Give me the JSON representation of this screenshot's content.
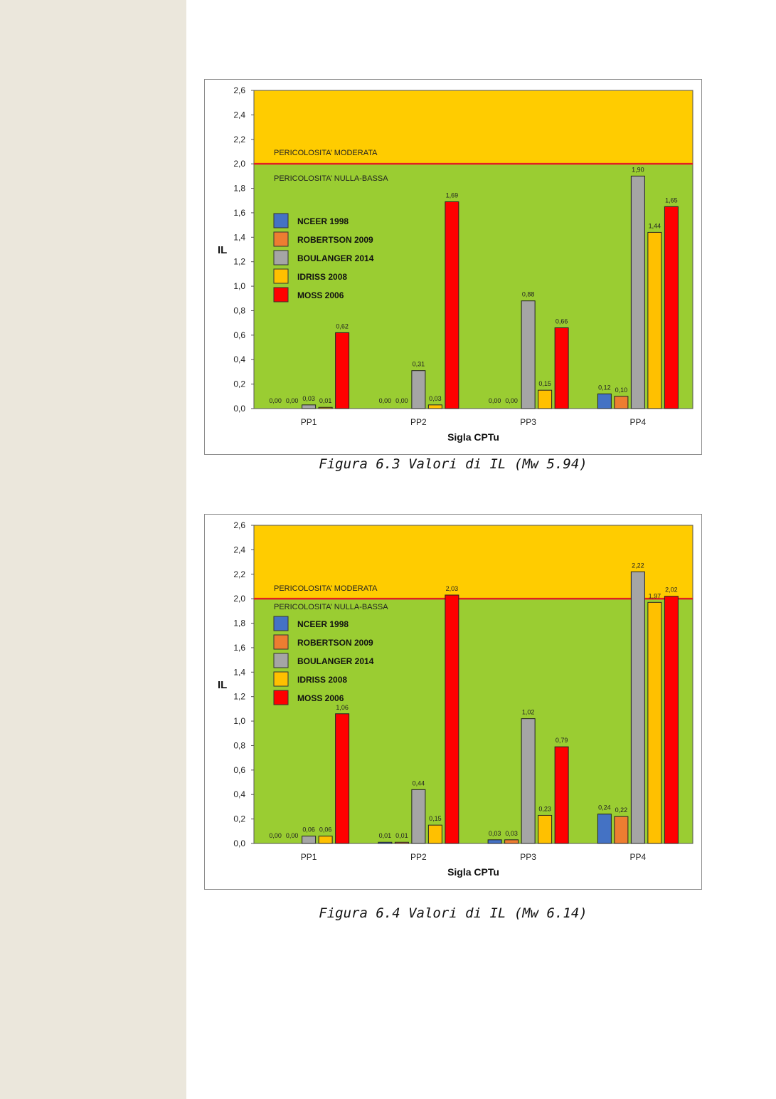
{
  "figures": [
    {
      "caption": "Figura 6.3 Valori di IL (Mw 5.94)",
      "chart_data": {
        "type": "bar",
        "xlabel": "Sigla CPTu",
        "ylabel": "IL",
        "ylim": [
          0,
          2.6
        ],
        "yticks": [
          "0,0",
          "0,2",
          "0,4",
          "0,6",
          "0,8",
          "1,0",
          "1,2",
          "1,4",
          "1,6",
          "1,8",
          "2,0",
          "2,2",
          "2,4",
          "2,6"
        ],
        "categories": [
          "PP1",
          "PP2",
          "PP3",
          "PP4"
        ],
        "threshold": 2.0,
        "zone_upper_label": "PERICOLOSITA’ MODERATA",
        "zone_lower_label": "PERICOLOSITA’ NULLA-BASSA",
        "legend_position": "left",
        "zone_colors": {
          "upper": "#ffcc00",
          "lower": "#9acd32",
          "threshold": "#e32020"
        },
        "series": [
          {
            "name": "NCEER 1998",
            "color": "#4472c4",
            "values": [
              0.0,
              0.0,
              0.0,
              0.12
            ],
            "labels": [
              "0,00",
              "0,00",
              "0,00",
              "0,12"
            ]
          },
          {
            "name": "ROBERTSON 2009",
            "color": "#ed7d31",
            "values": [
              0.0,
              0.0,
              0.0,
              0.1
            ],
            "labels": [
              "0,00",
              "0,00",
              "0,00",
              "0,10"
            ]
          },
          {
            "name": "BOULANGER 2014",
            "color": "#a5a5a5",
            "values": [
              0.03,
              0.31,
              0.88,
              1.9
            ],
            "labels": [
              "0,03",
              "0,31",
              "0,88",
              "1,90"
            ]
          },
          {
            "name": "IDRISS 2008",
            "color": "#ffc000",
            "values": [
              0.01,
              0.03,
              0.15,
              1.44
            ],
            "labels": [
              "0,01",
              "0,03",
              "0,15",
              "1,44"
            ]
          },
          {
            "name": "MOSS 2006",
            "color": "#ff0000",
            "values": [
              0.62,
              1.69,
              0.66,
              1.65
            ],
            "labels": [
              "0,62",
              "1,69",
              "0,66",
              "1,65"
            ]
          }
        ]
      }
    },
    {
      "caption": "Figura 6.4 Valori di IL (Mw 6.14)",
      "chart_data": {
        "type": "bar",
        "xlabel": "Sigla CPTu",
        "ylabel": "IL",
        "ylim": [
          0,
          2.6
        ],
        "yticks": [
          "0,0",
          "0,2",
          "0,4",
          "0,6",
          "0,8",
          "1,0",
          "1,2",
          "1,4",
          "1,6",
          "1,8",
          "2,0",
          "2,2",
          "2,4",
          "2,6"
        ],
        "categories": [
          "PP1",
          "PP2",
          "PP3",
          "PP4"
        ],
        "threshold": 2.0,
        "zone_upper_label": "PERICOLOSITA’ MODERATA",
        "zone_lower_label": "PERICOLOSITA’  NULLA-BASSA",
        "legend_position": "left",
        "zone_colors": {
          "upper": "#ffcc00",
          "lower": "#9acd32",
          "threshold": "#e32020"
        },
        "series": [
          {
            "name": "NCEER 1998",
            "color": "#4472c4",
            "values": [
              0.0,
              0.01,
              0.03,
              0.24
            ],
            "labels": [
              "0,00",
              "0,01",
              "0,03",
              "0,24"
            ]
          },
          {
            "name": "ROBERTSON 2009",
            "color": "#ed7d31",
            "values": [
              0.0,
              0.01,
              0.03,
              0.22
            ],
            "labels": [
              "0,00",
              "0,01",
              "0,03",
              "0,22"
            ]
          },
          {
            "name": "BOULANGER 2014",
            "color": "#a5a5a5",
            "values": [
              0.06,
              0.44,
              1.02,
              2.22
            ],
            "labels": [
              "0,06",
              "0,44",
              "1,02",
              "2,22"
            ]
          },
          {
            "name": "IDRISS 2008",
            "color": "#ffc000",
            "values": [
              0.06,
              0.15,
              0.23,
              1.97
            ],
            "labels": [
              "0,06",
              "0,15",
              "0,23",
              "1,97"
            ]
          },
          {
            "name": "MOSS 2006",
            "color": "#ff0000",
            "values": [
              1.06,
              2.03,
              0.79,
              2.02
            ],
            "labels": [
              "1,06",
              "2,03",
              "0,79",
              "2,02"
            ]
          }
        ]
      }
    }
  ]
}
